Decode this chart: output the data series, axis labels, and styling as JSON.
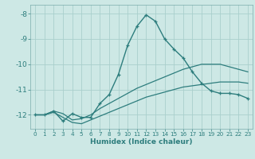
{
  "xlabel": "Humidex (Indice chaleur)",
  "background_color": "#cde8e5",
  "grid_color": "#aacfcc",
  "line_color": "#2d7d7d",
  "xlim": [
    -0.5,
    23.5
  ],
  "ylim": [
    -12.55,
    -7.65
  ],
  "yticks": [
    -12,
    -11,
    -10,
    -9,
    -8
  ],
  "xticks": [
    0,
    1,
    2,
    3,
    4,
    5,
    6,
    7,
    8,
    9,
    10,
    11,
    12,
    13,
    14,
    15,
    16,
    17,
    18,
    19,
    20,
    21,
    22,
    23
  ],
  "line1_x": [
    0,
    1,
    2,
    3,
    4,
    5,
    6,
    7,
    8,
    9,
    10,
    11,
    12,
    13,
    14,
    15,
    16,
    17,
    18,
    19,
    20,
    21,
    22,
    23
  ],
  "line1_y": [
    -12.0,
    -12.0,
    -11.85,
    -12.25,
    -11.95,
    -12.1,
    -12.1,
    -11.55,
    -11.2,
    -10.4,
    -9.25,
    -8.5,
    -8.05,
    -8.3,
    -9.0,
    -9.4,
    -9.75,
    -10.3,
    -10.75,
    -11.05,
    -11.15,
    -11.15,
    -11.2,
    -11.35
  ],
  "line2_x": [
    0,
    1,
    2,
    3,
    4,
    5,
    6,
    7,
    8,
    9,
    10,
    11,
    12,
    13,
    14,
    15,
    16,
    17,
    18,
    19,
    20,
    21,
    22,
    23
  ],
  "line2_y": [
    -12.0,
    -12.0,
    -11.85,
    -11.95,
    -12.2,
    -12.15,
    -12.0,
    -11.75,
    -11.55,
    -11.35,
    -11.15,
    -10.95,
    -10.8,
    -10.65,
    -10.5,
    -10.35,
    -10.2,
    -10.1,
    -10.0,
    -10.0,
    -10.0,
    -10.1,
    -10.2,
    -10.3
  ],
  "line3_x": [
    0,
    1,
    2,
    3,
    4,
    5,
    6,
    7,
    8,
    9,
    10,
    11,
    12,
    13,
    14,
    15,
    16,
    17,
    18,
    19,
    20,
    21,
    22,
    23
  ],
  "line3_y": [
    -12.0,
    -12.0,
    -11.9,
    -12.1,
    -12.3,
    -12.35,
    -12.2,
    -12.05,
    -11.9,
    -11.75,
    -11.6,
    -11.45,
    -11.3,
    -11.2,
    -11.1,
    -11.0,
    -10.9,
    -10.85,
    -10.8,
    -10.75,
    -10.7,
    -10.7,
    -10.7,
    -10.75
  ]
}
